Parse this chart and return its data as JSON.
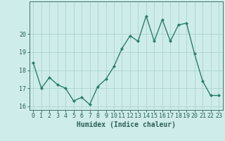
{
  "x": [
    0,
    1,
    2,
    3,
    4,
    5,
    6,
    7,
    8,
    9,
    10,
    11,
    12,
    13,
    14,
    15,
    16,
    17,
    18,
    19,
    20,
    21,
    22,
    23
  ],
  "y": [
    18.4,
    17.0,
    17.6,
    17.2,
    17.0,
    16.3,
    16.5,
    16.1,
    17.1,
    17.5,
    18.2,
    19.2,
    19.9,
    19.6,
    21.0,
    19.6,
    20.8,
    19.6,
    20.5,
    20.6,
    18.9,
    17.4,
    16.6,
    16.6
  ],
  "xlabel": "Humidex (Indice chaleur)",
  "ylim": [
    15.8,
    21.8
  ],
  "yticks": [
    16,
    17,
    18,
    19,
    20
  ],
  "xticks": [
    0,
    1,
    2,
    3,
    4,
    5,
    6,
    7,
    8,
    9,
    10,
    11,
    12,
    13,
    14,
    15,
    16,
    17,
    18,
    19,
    20,
    21,
    22,
    23
  ],
  "line_color": "#2e7d6e",
  "marker": "D",
  "marker_size": 2.0,
  "bg_color": "#cdecea",
  "grid_color": "#aed4d0",
  "text_color": "#2e5f5a",
  "xlabel_fontsize": 7,
  "tick_fontsize": 6,
  "linewidth": 1.0
}
